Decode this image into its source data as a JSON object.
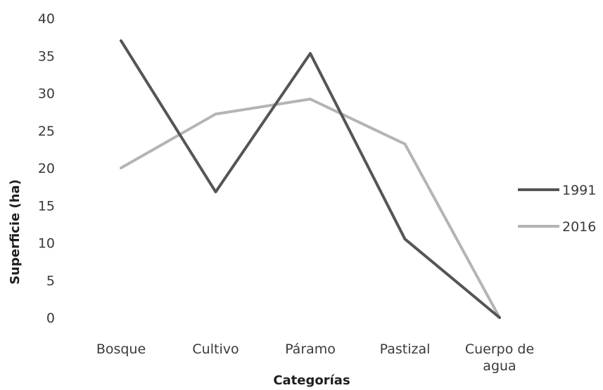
{
  "chart_data": {
    "type": "line",
    "xlabel": "Categorías",
    "ylabel": "Superficie (ha)",
    "categories": [
      [
        "Bosque"
      ],
      [
        "Cultivo"
      ],
      [
        "Páramo"
      ],
      [
        "Pastizal"
      ],
      [
        "Cuerpo de",
        "agua"
      ]
    ],
    "ylim": [
      0,
      40
    ],
    "yticks": [
      "0",
      "5",
      "10",
      "15",
      "20",
      "25",
      "30",
      "35",
      "40"
    ],
    "grid": false,
    "legend_position": "right",
    "series": [
      {
        "name": "1991",
        "color": "#555555",
        "values": [
          37,
          16.8,
          35.3,
          10.5,
          0
        ]
      },
      {
        "name": "2016",
        "color": "#b4b4b4",
        "values": [
          20,
          27.2,
          29.2,
          23.2,
          0
        ]
      }
    ]
  }
}
